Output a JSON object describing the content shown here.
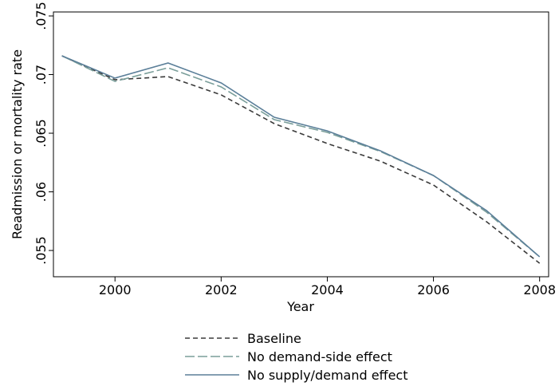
{
  "chart_data": {
    "type": "line",
    "x_label": "Year",
    "y_label": "Readmission or mortality rate",
    "x": [
      1999,
      2000,
      2001,
      2002,
      2003,
      2004,
      2005,
      2006,
      2007,
      2008
    ],
    "series": [
      {
        "name": "Baseline",
        "color": "#3a3a3a",
        "dash": "6,4",
        "values": [
          0.0716,
          0.06956,
          0.06983,
          0.06827,
          0.06582,
          0.06412,
          0.06262,
          0.06058,
          0.05745,
          0.05391
        ]
      },
      {
        "name": "No demand-side effect",
        "color": "#7a9e9a",
        "dash": "12,4",
        "values": [
          0.0716,
          0.06942,
          0.07058,
          0.06895,
          0.06616,
          0.06507,
          0.06344,
          0.06139,
          0.05827,
          0.05446
        ]
      },
      {
        "name": "No supply/demand effect",
        "color": "#5b7f99",
        "dash": null,
        "values": [
          0.0716,
          0.0697,
          0.07099,
          0.06929,
          0.06636,
          0.0652,
          0.0635,
          0.06139,
          0.0584,
          0.05446
        ]
      }
    ],
    "xlim": [
      1998.84,
      2008.17
    ],
    "xticks": [
      2000,
      2002,
      2004,
      2006,
      2008
    ],
    "ylim": [
      0.05276,
      0.07534
    ],
    "yticks": [
      {
        "value": 0.055,
        "label": ".055"
      },
      {
        "value": 0.06,
        "label": ".06"
      },
      {
        "value": 0.065,
        "label": ".065"
      },
      {
        "value": 0.07,
        "label": ".07"
      },
      {
        "value": 0.075,
        "label": ".075"
      }
    ],
    "grid": false
  }
}
